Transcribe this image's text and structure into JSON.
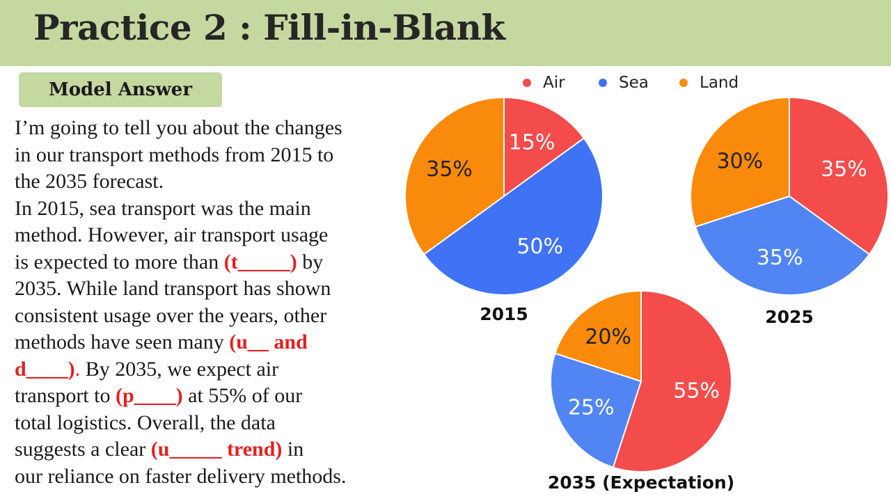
{
  "header": {
    "title": "Practice 2 : Fill-in-Blank"
  },
  "badge": {
    "label": "Model Answer"
  },
  "passage": {
    "l1": "I’m going to tell you about the changes",
    "l2": "in our transport methods from 2015 to",
    "l3": "the 2035 forecast.",
    "l4": "In 2015, sea transport was the main",
    "l5": "method. However, air transport usage",
    "l6a": "is expected to more than ",
    "l6b": "(t_____)",
    "l6c": " by",
    "l7": "2035. While land transport has shown",
    "l8": "consistent usage over the years, other",
    "l9a": "methods have seen many ",
    "l9b": "(u__ and",
    "l10a": "d____)",
    "l10b": ".",
    "l10c": " By 2035, we expect air",
    "l11a": "transport to ",
    "l11b": "(p____)",
    "l11c": " at 55% of our",
    "l12": "total logistics. Overall, the data",
    "l13a": "suggests a clear ",
    "l13b": "(u_____ trend)",
    "l13c": " in",
    "l14": "our reliance on faster delivery methods."
  },
  "legend": {
    "air": "Air",
    "sea": "Sea",
    "land": "Land"
  },
  "colors": {
    "air": "#f44b4b",
    "sea": "#3f72f5",
    "sea_alt": "#5085f3",
    "land": "#fa8a0b",
    "blank_red": "#e5201f",
    "header_green": "#c5d8a0"
  },
  "chart_data": [
    {
      "type": "pie",
      "title": "2015",
      "categories": [
        "Air",
        "Sea",
        "Land"
      ],
      "values": [
        15,
        50,
        35
      ],
      "labels": [
        "15%",
        "50%",
        "35%"
      ],
      "legend": "top"
    },
    {
      "type": "pie",
      "title": "2025",
      "categories": [
        "Air",
        "Sea",
        "Land"
      ],
      "values": [
        35,
        35,
        30
      ],
      "labels": [
        "35%",
        "35%",
        "30%"
      ],
      "legend": "top"
    },
    {
      "type": "pie",
      "title": "2035 (Expectation)",
      "categories": [
        "Air",
        "Sea",
        "Land"
      ],
      "values": [
        55,
        25,
        20
      ],
      "labels": [
        "55%",
        "25%",
        "20%"
      ],
      "legend": "top"
    }
  ]
}
